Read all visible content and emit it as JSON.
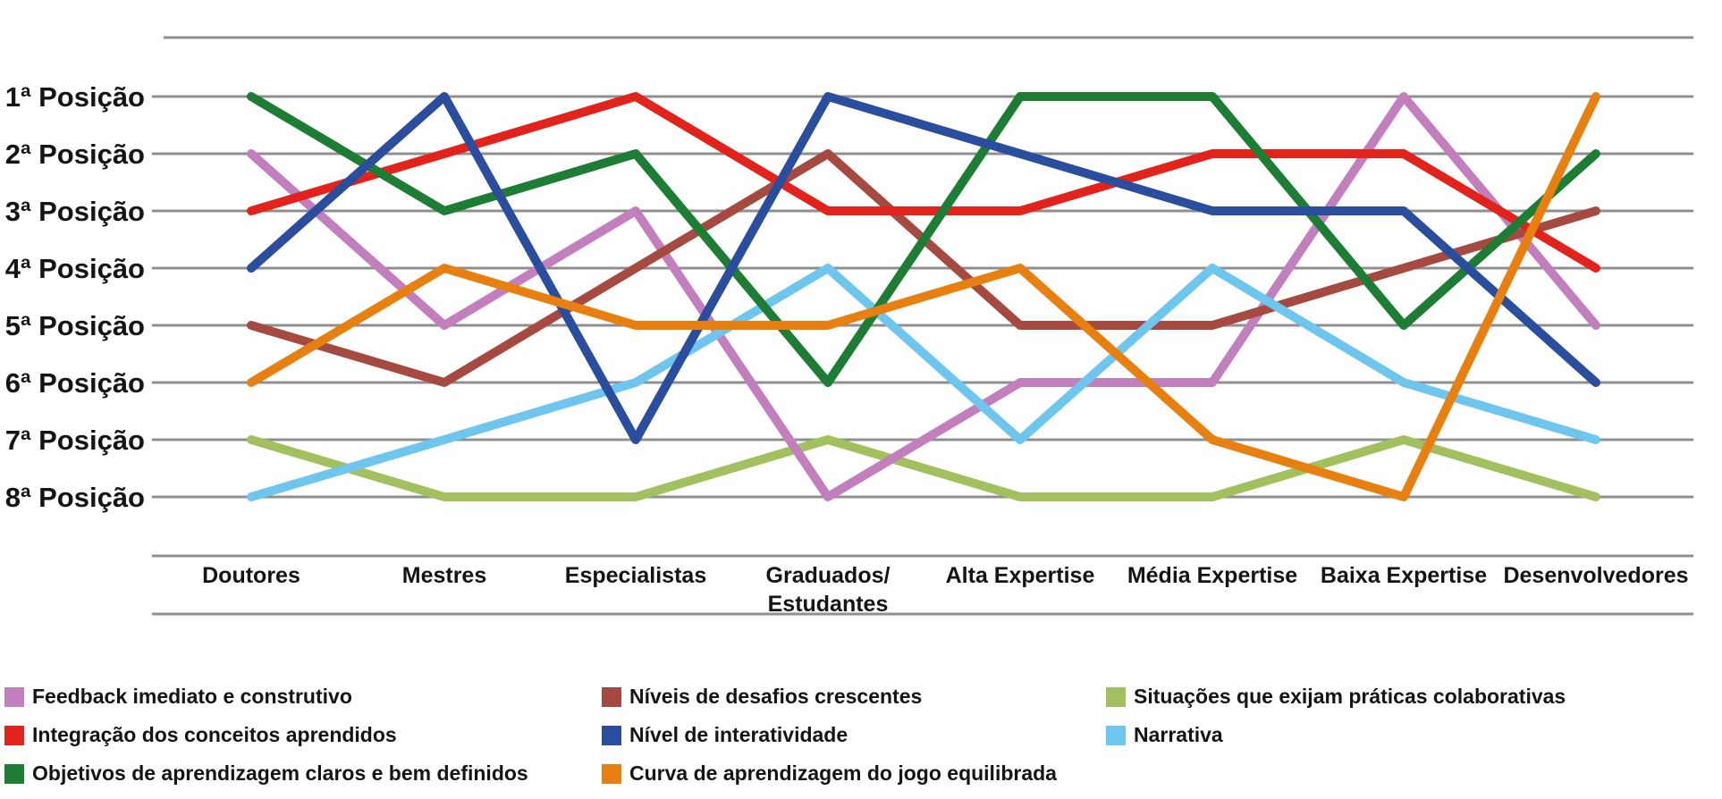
{
  "chart_data": {
    "type": "line",
    "subtype": "bump-rank-chart",
    "title": "",
    "xlabel": "",
    "ylabel": "",
    "y_axis_inverted": true,
    "grid": "horizontal",
    "legend_position": "bottom",
    "categories": [
      "Doutores",
      "Mestres",
      "Especialistas",
      "Graduados/Estudantes",
      "Alta Expertise",
      "Média Expertise",
      "Baixa Expertise",
      "Desenvolvedores"
    ],
    "y_tick_labels": [
      "1ª Posição",
      "2ª Posição",
      "3ª Posição",
      "4ª Posição",
      "5ª Posição",
      "6ª Posição",
      "7ª Posição",
      "8ª Posição"
    ],
    "series": [
      {
        "name": "Feedback imediato e construtivo",
        "color": "#c37fbd",
        "values": [
          2,
          5,
          3,
          8,
          6,
          6,
          1,
          5
        ]
      },
      {
        "name": "Integração dos conceitos aprendidos",
        "color": "#e2231b",
        "values": [
          3,
          2,
          1,
          3,
          3,
          2,
          2,
          4
        ]
      },
      {
        "name": "Objetivos de aprendizagem claros e bem definidos",
        "color": "#1e7d34",
        "values": [
          1,
          3,
          2,
          6,
          1,
          1,
          5,
          2
        ]
      },
      {
        "name": "Níveis de desafios crescentes",
        "color": "#a64a41",
        "values": [
          5,
          6,
          4,
          2,
          5,
          5,
          4,
          3
        ]
      },
      {
        "name": "Nível de interatividade",
        "color": "#2b4d9d",
        "values": [
          4,
          1,
          7,
          1,
          2,
          3,
          3,
          6
        ]
      },
      {
        "name": "Curva de aprendizagem do jogo equilibrada",
        "color": "#e88011",
        "values": [
          6,
          4,
          5,
          5,
          4,
          7,
          8,
          1
        ]
      },
      {
        "name": "Situações que exijam práticas colaborativas",
        "color": "#a3c05f",
        "values": [
          7,
          8,
          8,
          7,
          8,
          8,
          7,
          8
        ]
      },
      {
        "name": "Narrativa",
        "color": "#6ec6ee",
        "values": [
          8,
          7,
          6,
          4,
          7,
          4,
          6,
          7
        ]
      }
    ],
    "draw_order": [
      6,
      0,
      3,
      7,
      1,
      2,
      4,
      5
    ],
    "legend_columns": [
      [
        0,
        1,
        2
      ],
      [
        3,
        4,
        5
      ],
      [
        6,
        7
      ]
    ],
    "gridline_color": "#8f8f8f",
    "text_color": "#141414"
  }
}
